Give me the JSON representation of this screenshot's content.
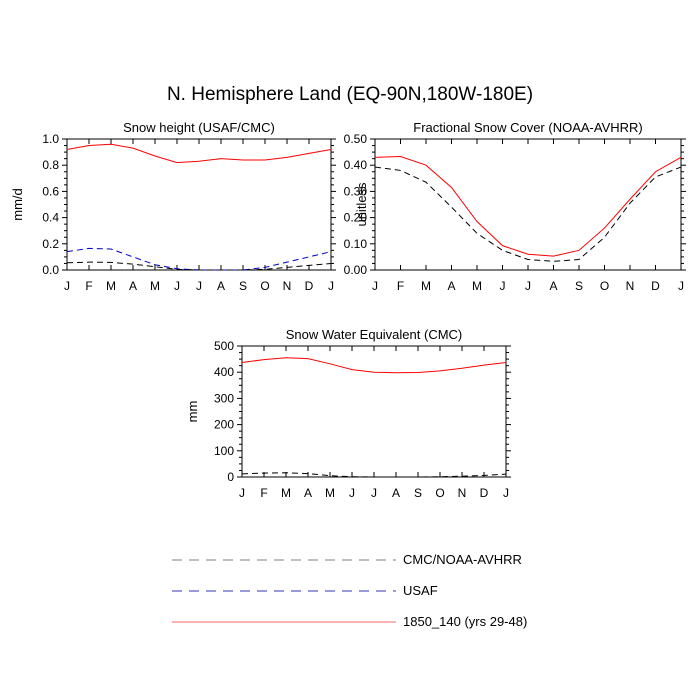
{
  "title": "N. Hemisphere Land (EQ-90N,180W-180E)",
  "months": [
    "J",
    "F",
    "M",
    "A",
    "M",
    "J",
    "J",
    "A",
    "S",
    "O",
    "N",
    "D",
    "J"
  ],
  "colors": {
    "model": "#ff0000",
    "obs": "#000000",
    "usaf": "#0000cc"
  },
  "legend": [
    {
      "label": "CMC/NOAA-AVHRR",
      "color": "#7f7f7f",
      "style": "dashed"
    },
    {
      "label": "USAF",
      "color": "#3333bb",
      "style": "dashed"
    },
    {
      "label": "1850_140 (yrs 29-48)",
      "color": "#ff6666",
      "style": "solid"
    }
  ],
  "chart_data": [
    {
      "type": "line",
      "title": "Snow height (USAF/CMC)",
      "xlabel": "",
      "ylabel": "mm/d",
      "ylim": [
        0,
        1.0
      ],
      "yticks": [
        0.0,
        0.2,
        0.4,
        0.6,
        0.8,
        1.0
      ],
      "yticklabels": [
        "0.0",
        "0.2",
        "0.4",
        "0.6",
        "0.8",
        "1.0"
      ],
      "categories": [
        "J",
        "F",
        "M",
        "A",
        "M",
        "J",
        "J",
        "A",
        "S",
        "O",
        "N",
        "D",
        "J"
      ],
      "series": [
        {
          "name": "1850_140 (yrs 29-48)",
          "style": "solid",
          "color": "#ff0000",
          "values": [
            0.92,
            0.95,
            0.96,
            0.93,
            0.87,
            0.82,
            0.83,
            0.85,
            0.84,
            0.84,
            0.86,
            0.89,
            0.92
          ]
        },
        {
          "name": "USAF",
          "style": "dashed",
          "color": "#0000cc",
          "values": [
            0.14,
            0.165,
            0.16,
            0.1,
            0.04,
            0.01,
            0.0,
            0.0,
            0.0,
            0.02,
            0.06,
            0.1,
            0.14
          ]
        },
        {
          "name": "CMC/NOAA-AVHRR",
          "style": "dashed",
          "color": "#000000",
          "values": [
            0.055,
            0.06,
            0.058,
            0.045,
            0.025,
            0.005,
            0.0,
            0.0,
            0.0,
            0.005,
            0.02,
            0.035,
            0.05
          ]
        }
      ]
    },
    {
      "type": "line",
      "title": "Fractional Snow Cover (NOAA-AVHRR)",
      "xlabel": "",
      "ylabel": "unitless",
      "ylim": [
        0,
        0.5
      ],
      "yticks": [
        0.0,
        0.1,
        0.2,
        0.3,
        0.4,
        0.5
      ],
      "yticklabels": [
        "0.00",
        "0.10",
        "0.20",
        "0.30",
        "0.40",
        "0.50"
      ],
      "categories": [
        "J",
        "F",
        "M",
        "A",
        "M",
        "J",
        "J",
        "A",
        "S",
        "O",
        "N",
        "D",
        "J"
      ],
      "series": [
        {
          "name": "1850_140 (yrs 29-48)",
          "style": "solid",
          "color": "#ff0000",
          "values": [
            0.43,
            0.433,
            0.4,
            0.315,
            0.185,
            0.093,
            0.06,
            0.053,
            0.075,
            0.16,
            0.27,
            0.375,
            0.43
          ]
        },
        {
          "name": "CMC/NOAA-AVHRR",
          "style": "dashed",
          "color": "#000000",
          "values": [
            0.393,
            0.38,
            0.335,
            0.24,
            0.14,
            0.075,
            0.04,
            0.033,
            0.04,
            0.125,
            0.255,
            0.355,
            0.393
          ]
        }
      ]
    },
    {
      "type": "line",
      "title": "Snow Water Equivalent (CMC)",
      "xlabel": "",
      "ylabel": "mm",
      "ylim": [
        0,
        500
      ],
      "yticks": [
        0,
        100,
        200,
        300,
        400,
        500
      ],
      "yticklabels": [
        "0",
        "100",
        "200",
        "300",
        "400",
        "500"
      ],
      "categories": [
        "J",
        "F",
        "M",
        "A",
        "M",
        "J",
        "J",
        "A",
        "S",
        "O",
        "N",
        "D",
        "J"
      ],
      "series": [
        {
          "name": "1850_140 (yrs 29-48)",
          "style": "solid",
          "color": "#ff0000",
          "values": [
            437,
            448,
            455,
            452,
            432,
            410,
            400,
            398,
            399,
            405,
            415,
            427,
            437
          ]
        },
        {
          "name": "CMC/NOAA-AVHRR",
          "style": "dashed",
          "color": "#000000",
          "values": [
            12,
            15,
            16,
            13,
            5,
            1,
            0,
            0,
            0,
            1,
            3,
            6,
            11
          ]
        }
      ]
    }
  ]
}
